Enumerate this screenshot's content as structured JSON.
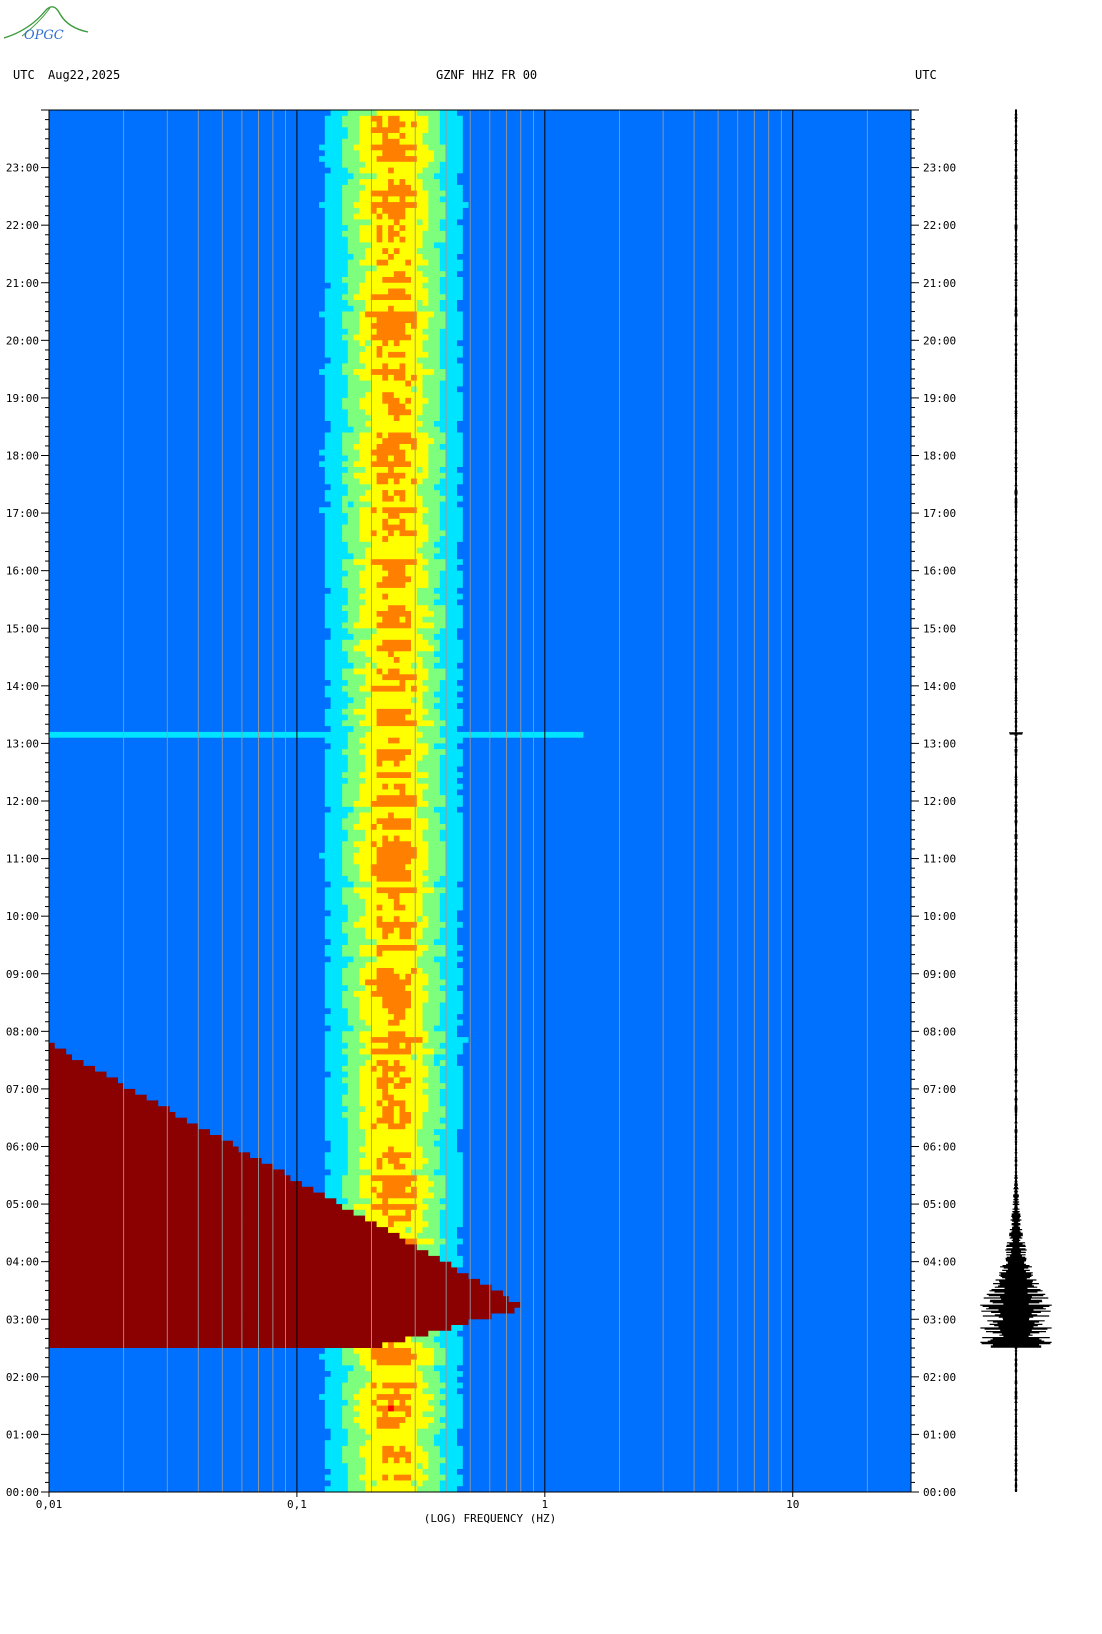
{
  "header": {
    "left_tz": "UTC",
    "date": "Aug22,2025",
    "station": "GZNF HHZ FR 00",
    "right_tz": "UTC"
  },
  "logo": {
    "text": "OPGC",
    "color": "#2f6fd0",
    "accent": "#3a9a3a"
  },
  "chart_data": {
    "type": "heatmap",
    "title": "",
    "xlabel": "(LOG) FREQUENCY (HZ)",
    "ylabel": "",
    "x_scale": "log",
    "xlim": [
      0.01,
      30
    ],
    "x_ticks": [
      {
        "value": 0.01,
        "label": "0,01"
      },
      {
        "value": 0.1,
        "label": "0,1"
      },
      {
        "value": 1,
        "label": "1"
      },
      {
        "value": 10,
        "label": "10"
      }
    ],
    "y_range_hours": [
      0,
      24
    ],
    "y_ticks": [
      "00:00",
      "01:00",
      "02:00",
      "03:00",
      "04:00",
      "05:00",
      "06:00",
      "07:00",
      "08:00",
      "09:00",
      "10:00",
      "11:00",
      "12:00",
      "13:00",
      "14:00",
      "15:00",
      "16:00",
      "17:00",
      "18:00",
      "19:00",
      "20:00",
      "21:00",
      "22:00",
      "23:00"
    ],
    "microseism_band_hz": [
      0.15,
      0.4
    ],
    "events": [
      {
        "start_hour": 2.5,
        "end_hour": 5.3,
        "peak_hour": 3.2,
        "peak_freq_hz": 0.6
      },
      {
        "start_hour": 13.17,
        "end_hour": 13.2,
        "peak_freq_hz": 1.4
      }
    ],
    "colormap": [
      "#00008f",
      "#0000ff",
      "#0070ff",
      "#00e5ff",
      "#7dff7d",
      "#ffff00",
      "#ff8000",
      "#ff0000",
      "#8b0000"
    ]
  },
  "seismogram": {
    "event_start_hour": 2.5,
    "event_peak_hour": 3.3,
    "event_end_hour": 5.2,
    "color": "#000000"
  }
}
